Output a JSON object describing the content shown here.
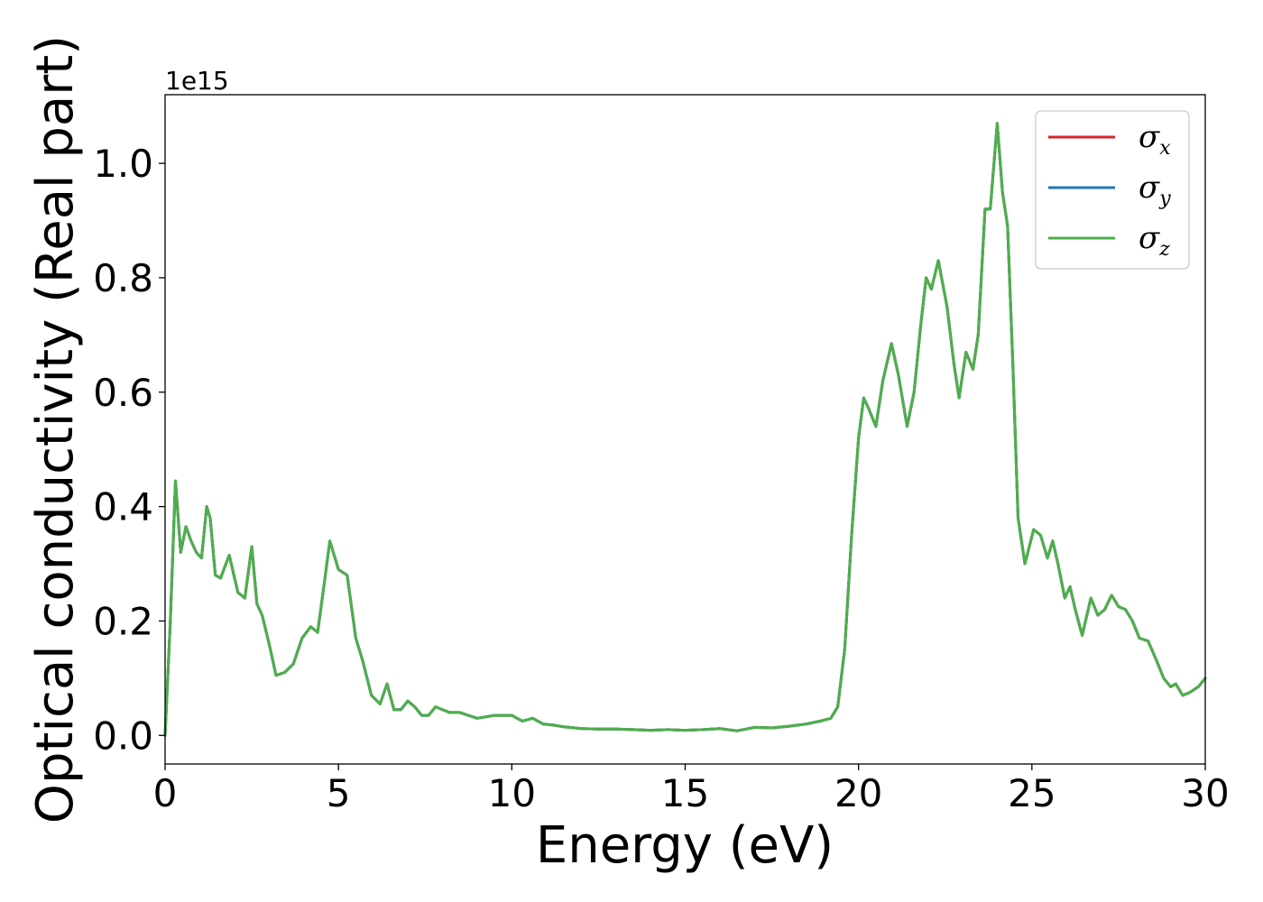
{
  "chart_data": {
    "type": "line",
    "xlabel": "Energy (eV)",
    "ylabel": "Optical conductivity (Real part)",
    "y_offset_label": "1e15",
    "xlim": [
      0,
      30
    ],
    "ylim": [
      -0.05,
      1.12
    ],
    "x_ticks": [
      0,
      5,
      10,
      15,
      20,
      25,
      30
    ],
    "x_tick_labels": [
      "0",
      "5",
      "10",
      "15",
      "20",
      "25",
      "30"
    ],
    "y_ticks": [
      0.0,
      0.2,
      0.4,
      0.6,
      0.8,
      1.0
    ],
    "y_tick_labels": [
      "0.0",
      "0.2",
      "0.4",
      "0.6",
      "0.8",
      "1.0"
    ],
    "grid": false,
    "legend_position": "top-right",
    "series": [
      {
        "name": "σ",
        "subscript": "x",
        "color": "#d62728"
      },
      {
        "name": "σ",
        "subscript": "y",
        "color": "#1f77b4"
      },
      {
        "name": "σ",
        "subscript": "z",
        "color": "#4daf4a"
      }
    ],
    "x": [
      0.0,
      0.15,
      0.3,
      0.45,
      0.6,
      0.75,
      0.9,
      1.05,
      1.2,
      1.3,
      1.45,
      1.6,
      1.85,
      2.1,
      2.3,
      2.5,
      2.65,
      2.8,
      3.0,
      3.2,
      3.45,
      3.7,
      3.95,
      4.2,
      4.4,
      4.6,
      4.75,
      5.0,
      5.25,
      5.5,
      5.7,
      5.95,
      6.2,
      6.4,
      6.6,
      6.8,
      7.0,
      7.2,
      7.4,
      7.6,
      7.8,
      8.0,
      8.2,
      8.5,
      9.0,
      9.5,
      10.0,
      10.3,
      10.6,
      10.9,
      11.2,
      11.5,
      12.0,
      12.5,
      13.0,
      13.5,
      14.0,
      14.5,
      15.0,
      15.5,
      16.0,
      16.5,
      17.0,
      17.5,
      18.0,
      18.5,
      18.9,
      19.2,
      19.4,
      19.6,
      19.8,
      20.0,
      20.15,
      20.3,
      20.5,
      20.7,
      20.95,
      21.15,
      21.4,
      21.6,
      21.8,
      21.95,
      22.1,
      22.3,
      22.55,
      22.75,
      22.9,
      23.1,
      23.3,
      23.45,
      23.65,
      23.8,
      24.0,
      24.15,
      24.3,
      24.45,
      24.6,
      24.8,
      25.05,
      25.25,
      25.45,
      25.6,
      25.75,
      25.95,
      26.1,
      26.25,
      26.45,
      26.7,
      26.9,
      27.1,
      27.3,
      27.5,
      27.7,
      27.9,
      28.1,
      28.35,
      28.6,
      28.8,
      29.0,
      29.15,
      29.35,
      29.55,
      29.8,
      30.0
    ],
    "y": [
      0.0,
      0.2,
      0.445,
      0.32,
      0.365,
      0.34,
      0.32,
      0.31,
      0.4,
      0.38,
      0.28,
      0.275,
      0.315,
      0.25,
      0.24,
      0.33,
      0.23,
      0.21,
      0.16,
      0.105,
      0.11,
      0.125,
      0.17,
      0.19,
      0.18,
      0.27,
      0.34,
      0.29,
      0.28,
      0.17,
      0.13,
      0.07,
      0.055,
      0.09,
      0.045,
      0.045,
      0.06,
      0.05,
      0.035,
      0.035,
      0.05,
      0.045,
      0.04,
      0.04,
      0.03,
      0.035,
      0.035,
      0.025,
      0.03,
      0.02,
      0.018,
      0.015,
      0.012,
      0.011,
      0.011,
      0.01,
      0.009,
      0.01,
      0.009,
      0.01,
      0.012,
      0.008,
      0.014,
      0.013,
      0.016,
      0.02,
      0.025,
      0.03,
      0.05,
      0.15,
      0.35,
      0.52,
      0.59,
      0.57,
      0.54,
      0.62,
      0.685,
      0.63,
      0.54,
      0.6,
      0.72,
      0.8,
      0.78,
      0.83,
      0.75,
      0.65,
      0.59,
      0.67,
      0.64,
      0.7,
      0.92,
      0.92,
      1.07,
      0.95,
      0.89,
      0.65,
      0.38,
      0.3,
      0.36,
      0.35,
      0.31,
      0.34,
      0.3,
      0.24,
      0.26,
      0.22,
      0.175,
      0.24,
      0.21,
      0.22,
      0.245,
      0.225,
      0.22,
      0.2,
      0.17,
      0.165,
      0.13,
      0.1,
      0.085,
      0.09,
      0.07,
      0.075,
      0.085,
      0.1
    ]
  }
}
